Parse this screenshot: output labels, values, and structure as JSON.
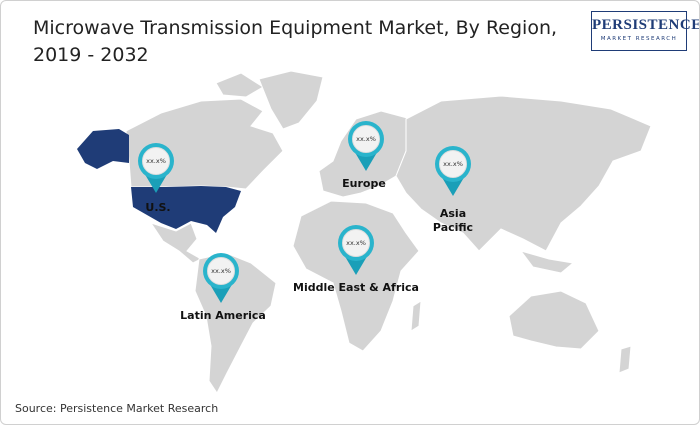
{
  "header": {
    "title": "Microwave Transmission Equipment Market, By Region, 2019 - 2032",
    "logo": {
      "name": "PERSISTENCE",
      "tagline": "MARKET RESEARCH"
    }
  },
  "regions": [
    {
      "name": "U.S.",
      "value": "xx.x%"
    },
    {
      "name": "Europe",
      "value": "xx.x%"
    },
    {
      "name": "Asia Pacific",
      "value": "xx.x%"
    },
    {
      "name": "Middle East & Africa",
      "value": "xx.x%"
    },
    {
      "name": "Latin America",
      "value": "xx.x%"
    }
  ],
  "footer": {
    "source": "Source: Persistence Market Research"
  }
}
